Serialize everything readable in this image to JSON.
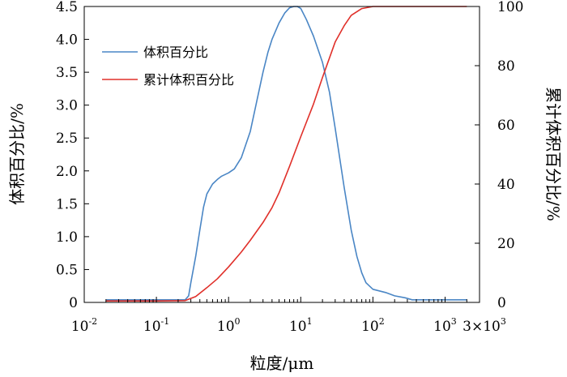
{
  "chart_data": {
    "type": "line",
    "xlabel": "粒度/μm",
    "ylabel_left": "体积百分比/%",
    "ylabel_right": "累计体积百分比/%",
    "x_scale": "log",
    "xlim": [
      0.01,
      3000
    ],
    "ylim_left": [
      0,
      4.5
    ],
    "ylim_right": [
      0,
      100
    ],
    "x_tick_labels": [
      {
        "base": "10",
        "exp": "-2",
        "value": 0.01
      },
      {
        "base": "10",
        "exp": "-1",
        "value": 0.1
      },
      {
        "base": "10",
        "exp": "0",
        "value": 1
      },
      {
        "base": "10",
        "exp": "1",
        "value": 10
      },
      {
        "base": "10",
        "exp": "2",
        "value": 100
      },
      {
        "base": "10",
        "exp": "3",
        "value": 1000
      },
      {
        "base": "3×10",
        "exp": "3",
        "value": 3000
      }
    ],
    "y_left_ticks": [
      "0",
      "0.5",
      "1.0",
      "1.5",
      "2.0",
      "2.5",
      "3.0",
      "3.5",
      "4.0",
      "4.5"
    ],
    "y_right_ticks": [
      "0",
      "20",
      "40",
      "60",
      "80",
      "100"
    ],
    "legend_position": "top-left",
    "series": [
      {
        "name": "体积百分比",
        "color": "#4a86c5",
        "axis": "left",
        "x": [
          0.02,
          0.1,
          0.25,
          0.28,
          0.3,
          0.35,
          0.4,
          0.45,
          0.5,
          0.6,
          0.7,
          0.8,
          1.0,
          1.2,
          1.5,
          2.0,
          2.5,
          3.0,
          3.5,
          4.0,
          5.0,
          6.0,
          7.0,
          8.0,
          9.0,
          10,
          12,
          15,
          20,
          25,
          30,
          40,
          50,
          60,
          70,
          80,
          100,
          150,
          200,
          280,
          350,
          500,
          1000,
          2000
        ],
        "y": [
          0.04,
          0.04,
          0.04,
          0.1,
          0.3,
          0.7,
          1.1,
          1.45,
          1.65,
          1.8,
          1.87,
          1.92,
          1.97,
          2.03,
          2.2,
          2.6,
          3.1,
          3.5,
          3.8,
          4.0,
          4.25,
          4.4,
          4.48,
          4.5,
          4.5,
          4.47,
          4.3,
          4.05,
          3.65,
          3.2,
          2.65,
          1.75,
          1.1,
          0.7,
          0.45,
          0.3,
          0.2,
          0.15,
          0.1,
          0.07,
          0.04,
          0.04,
          0.04,
          0.04
        ]
      },
      {
        "name": "累计体积百分比",
        "color": "#e0302a",
        "axis": "right",
        "x": [
          0.02,
          0.1,
          0.25,
          0.35,
          0.5,
          0.7,
          1.0,
          1.5,
          2.0,
          3.0,
          4.0,
          5.0,
          7.0,
          10,
          15,
          20,
          30,
          40,
          50,
          70,
          100,
          2000
        ],
        "y": [
          0.5,
          0.5,
          0.6,
          2,
          5,
          8,
          12,
          17,
          21,
          27,
          32,
          37,
          46,
          56,
          67,
          76,
          88,
          93.5,
          97,
          99.3,
          100,
          100
        ]
      }
    ]
  }
}
